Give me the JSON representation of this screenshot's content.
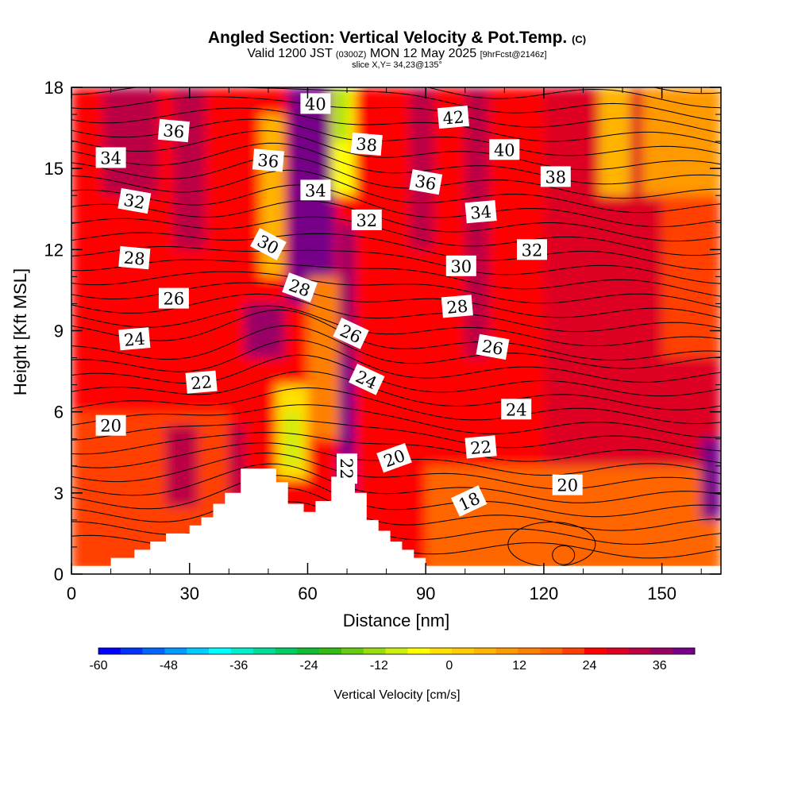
{
  "header": {
    "title": "Angled Section: Vertical Velocity & Pot.Temp.",
    "title_unit": "(C)",
    "valid_prefix": "Valid 1200 JST",
    "valid_utc": "(0300Z)",
    "valid_date": "MON 12 May 2025",
    "valid_fcst": "[9hrFcst@2146z]",
    "slice": "slice X,Y= 34,23@135°"
  },
  "chart_data": {
    "type": "heatmap",
    "xlabel": "Distance [nm]",
    "ylabel": "Height [Kft MSL]",
    "xlim": [
      0,
      165
    ],
    "ylim": [
      0,
      18
    ],
    "x_ticks": [
      0,
      30,
      60,
      90,
      120,
      150
    ],
    "y_ticks": [
      0,
      3,
      6,
      9,
      12,
      15,
      18
    ],
    "colorbar": {
      "label": "Vertical Velocity [cm/s]",
      "range": [
        -60,
        42
      ],
      "step": 3,
      "tick_values": [
        -60,
        -48,
        -36,
        -24,
        -12,
        0,
        12,
        24,
        36
      ],
      "colors": [
        "#0000ff",
        "#0033ff",
        "#0066ff",
        "#0099ff",
        "#00ccff",
        "#00ffff",
        "#00eecc",
        "#00dd99",
        "#00cc66",
        "#11bb33",
        "#33bb11",
        "#66cc11",
        "#99dd11",
        "#ccee11",
        "#ffff00",
        "#ffe000",
        "#ffcc00",
        "#ffb400",
        "#ff9900",
        "#ff8000",
        "#ff6600",
        "#ff4000",
        "#ff0000",
        "#dd0022",
        "#bb0044",
        "#990066",
        "#770088"
      ]
    },
    "terrain": [
      [
        0,
        0.3
      ],
      [
        10,
        0.3
      ],
      [
        10,
        0.6
      ],
      [
        16,
        0.6
      ],
      [
        16,
        0.9
      ],
      [
        20,
        0.9
      ],
      [
        20,
        1.2
      ],
      [
        24,
        1.2
      ],
      [
        24,
        1.5
      ],
      [
        30,
        1.5
      ],
      [
        30,
        1.8
      ],
      [
        33,
        1.8
      ],
      [
        33,
        2.1
      ],
      [
        36,
        2.1
      ],
      [
        36,
        2.6
      ],
      [
        39,
        2.6
      ],
      [
        39,
        3.0
      ],
      [
        43,
        3.0
      ],
      [
        43,
        3.9
      ],
      [
        52,
        3.9
      ],
      [
        52,
        3.4
      ],
      [
        55,
        3.4
      ],
      [
        55,
        2.6
      ],
      [
        59,
        2.6
      ],
      [
        59,
        2.3
      ],
      [
        62,
        2.3
      ],
      [
        62,
        2.7
      ],
      [
        66,
        2.7
      ],
      [
        66,
        3.6
      ],
      [
        69,
        3.6
      ],
      [
        69,
        3.8
      ],
      [
        72,
        3.8
      ],
      [
        72,
        3.0
      ],
      [
        75,
        3.0
      ],
      [
        75,
        2.0
      ],
      [
        78,
        2.0
      ],
      [
        78,
        1.6
      ],
      [
        81,
        1.6
      ],
      [
        81,
        1.2
      ],
      [
        84,
        1.2
      ],
      [
        84,
        0.9
      ],
      [
        87,
        0.9
      ],
      [
        87,
        0.6
      ],
      [
        90,
        0.6
      ],
      [
        90,
        0.3
      ],
      [
        165,
        0.3
      ]
    ],
    "contour_labels": [
      {
        "value": "40",
        "x": 62,
        "y": 17.4,
        "angle": 0
      },
      {
        "value": "42",
        "x": 97,
        "y": 16.9,
        "angle": -5
      },
      {
        "value": "36",
        "x": 26,
        "y": 16.4,
        "angle": 5
      },
      {
        "value": "38",
        "x": 75,
        "y": 15.9,
        "angle": 5
      },
      {
        "value": "40",
        "x": 110,
        "y": 15.7,
        "angle": 0
      },
      {
        "value": "34",
        "x": 10,
        "y": 15.4,
        "angle": 0
      },
      {
        "value": "36",
        "x": 50,
        "y": 15.3,
        "angle": 5
      },
      {
        "value": "38",
        "x": 123,
        "y": 14.7,
        "angle": 0
      },
      {
        "value": "36",
        "x": 90,
        "y": 14.5,
        "angle": 10
      },
      {
        "value": "34",
        "x": 62,
        "y": 14.2,
        "angle": 0
      },
      {
        "value": "34",
        "x": 104,
        "y": 13.4,
        "angle": -5
      },
      {
        "value": "32",
        "x": 16,
        "y": 13.8,
        "angle": 10
      },
      {
        "value": "32",
        "x": 75,
        "y": 13.1,
        "angle": 0
      },
      {
        "value": "30",
        "x": 50,
        "y": 12.2,
        "angle": 28
      },
      {
        "value": "32",
        "x": 117,
        "y": 12.0,
        "angle": 0
      },
      {
        "value": "28",
        "x": 16,
        "y": 11.7,
        "angle": 5
      },
      {
        "value": "30",
        "x": 99,
        "y": 11.4,
        "angle": 0
      },
      {
        "value": "28",
        "x": 58,
        "y": 10.6,
        "angle": 20
      },
      {
        "value": "26",
        "x": 26,
        "y": 10.2,
        "angle": 0
      },
      {
        "value": "28",
        "x": 98,
        "y": 9.9,
        "angle": -5
      },
      {
        "value": "26",
        "x": 71,
        "y": 8.9,
        "angle": 25
      },
      {
        "value": "24",
        "x": 16,
        "y": 8.7,
        "angle": -5
      },
      {
        "value": "26",
        "x": 107,
        "y": 8.4,
        "angle": 10
      },
      {
        "value": "24",
        "x": 75,
        "y": 7.2,
        "angle": 25
      },
      {
        "value": "22",
        "x": 33,
        "y": 7.1,
        "angle": -5
      },
      {
        "value": "24",
        "x": 113,
        "y": 6.1,
        "angle": 0
      },
      {
        "value": "20",
        "x": 10,
        "y": 5.5,
        "angle": 0
      },
      {
        "value": "22",
        "x": 104,
        "y": 4.7,
        "angle": -5
      },
      {
        "value": "22",
        "x": 70,
        "y": 3.9,
        "angle": 90
      },
      {
        "value": "20",
        "x": 82,
        "y": 4.3,
        "angle": -20
      },
      {
        "value": "20",
        "x": 126,
        "y": 3.3,
        "angle": 0
      },
      {
        "value": "18",
        "x": 101,
        "y": 2.7,
        "angle": -25
      }
    ],
    "velocity_features": [
      {
        "x": 0,
        "y": 0,
        "w": 165,
        "h": 18,
        "v": 6
      },
      {
        "x": 0,
        "y": 0,
        "w": 40,
        "h": 6,
        "v": 3
      },
      {
        "x": 90,
        "y": 0,
        "w": 75,
        "h": 4,
        "v": 2
      },
      {
        "x": 120,
        "y": 4,
        "w": 45,
        "h": 14,
        "v": 9
      },
      {
        "x": 150,
        "y": 8,
        "w": 15,
        "h": 10,
        "v": 3
      },
      {
        "x": 145,
        "y": 14,
        "w": 20,
        "h": 4,
        "v": -6
      },
      {
        "x": 134,
        "y": 14,
        "w": 8,
        "h": 4,
        "v": -9
      },
      {
        "x": 55,
        "y": 10,
        "w": 12,
        "h": 8,
        "v": 24
      },
      {
        "x": 57,
        "y": 13,
        "w": 7,
        "h": 5,
        "v": 27
      },
      {
        "x": 48,
        "y": 11,
        "w": 6,
        "h": 6,
        "v": -9
      },
      {
        "x": 66,
        "y": 14,
        "w": 6,
        "h": 4,
        "v": -18
      },
      {
        "x": 67,
        "y": 16,
        "w": 3,
        "h": 2,
        "v": -24
      },
      {
        "x": 68,
        "y": 8,
        "w": 4,
        "h": 5,
        "v": 15
      },
      {
        "x": 68,
        "y": 3,
        "w": 4,
        "h": 5,
        "v": 21
      },
      {
        "x": 60,
        "y": 5,
        "w": 8,
        "h": 6,
        "v": -3
      },
      {
        "x": 52,
        "y": 3.5,
        "w": 8,
        "h": 3.5,
        "v": -15
      },
      {
        "x": 54,
        "y": 4,
        "w": 4,
        "h": 2,
        "v": -21
      },
      {
        "x": 44,
        "y": 8,
        "w": 10,
        "h": 2,
        "v": 15
      },
      {
        "x": 86,
        "y": 12,
        "w": 6,
        "h": 6,
        "v": 12
      },
      {
        "x": 100,
        "y": 8,
        "w": 6,
        "h": 10,
        "v": 12
      },
      {
        "x": 160,
        "y": 2,
        "w": 5,
        "h": 3,
        "v": 18
      },
      {
        "x": 24,
        "y": 2.5,
        "w": 8,
        "h": 3,
        "v": 12
      },
      {
        "x": 40,
        "y": 2.5,
        "w": 4,
        "h": 3,
        "v": 12
      },
      {
        "x": 8,
        "y": 14,
        "w": 14,
        "h": 4,
        "v": 12
      },
      {
        "x": 26,
        "y": 12,
        "w": 8,
        "h": 6,
        "v": 12
      },
      {
        "x": 130,
        "y": 0,
        "w": 12,
        "h": 3,
        "v": 0
      }
    ]
  }
}
